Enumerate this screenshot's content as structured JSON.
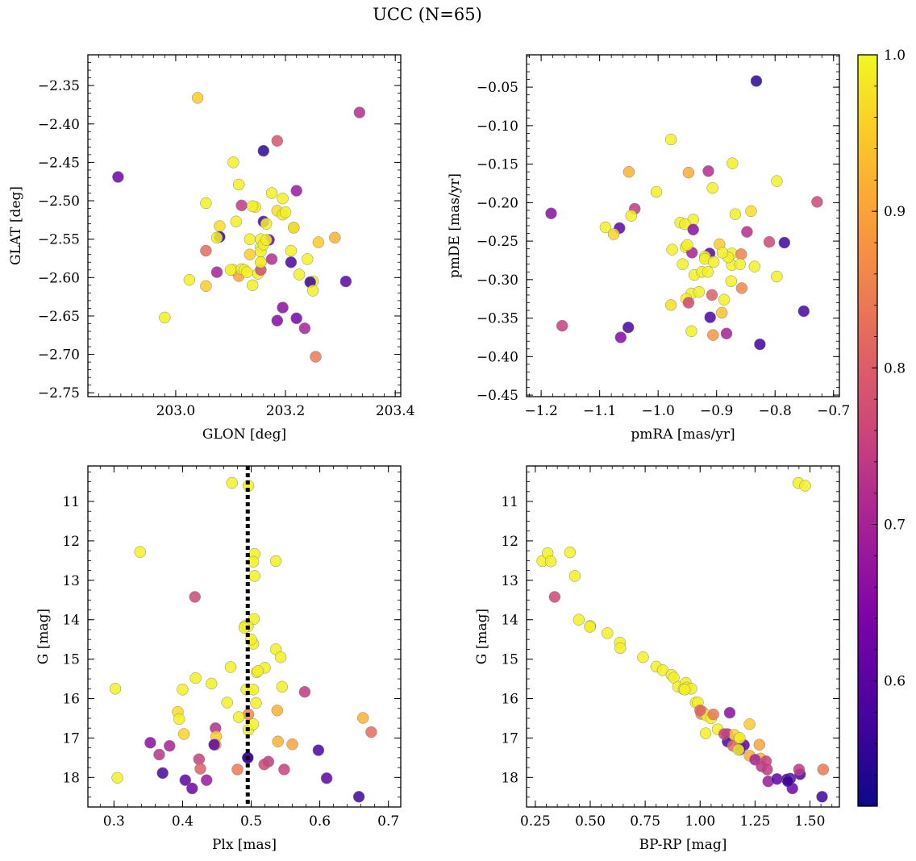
{
  "figure": {
    "title": "UCC (N=65)",
    "colorbar": {
      "colormap": "plasma",
      "range": [
        0.52,
        1.0
      ],
      "ticks": [
        "0.6",
        "0.7",
        "0.8",
        "0.9",
        "1.0"
      ],
      "tick_values": [
        0.6,
        0.7,
        0.8,
        0.9,
        1.0
      ]
    },
    "reference_line": {
      "panel": "plx_g",
      "x": 0.495,
      "style": "dotted",
      "color": "#000000"
    }
  },
  "chart_data": [
    {
      "id": "glon_glat",
      "type": "scatter",
      "title": "",
      "xlabel": "GLON [deg]",
      "ylabel": "GLAT [deg]",
      "xlim": [
        202.84,
        203.41
      ],
      "ylim": [
        -2.755,
        -2.31
      ],
      "xticks": [
        "203.0",
        "203.2",
        "203.4"
      ],
      "xtick_values": [
        203.0,
        203.2,
        203.4
      ],
      "yticks": [
        "−2.35",
        "−2.40",
        "−2.45",
        "−2.50",
        "−2.55",
        "−2.60",
        "−2.65",
        "−2.70",
        "−2.75"
      ],
      "ytick_values": [
        -2.35,
        -2.4,
        -2.45,
        -2.5,
        -2.55,
        -2.6,
        -2.65,
        -2.7,
        -2.75
      ],
      "x": [
        203.04,
        203.335,
        203.185,
        202.895,
        203.16,
        203.105,
        203.115,
        203.22,
        203.195,
        203.175,
        203.055,
        203.12,
        203.145,
        203.185,
        203.08,
        203.195,
        203.215,
        203.16,
        203.29,
        203.26,
        203.08,
        203.17,
        203.135,
        203.155,
        203.155,
        203.055,
        203.21,
        203.24,
        203.135,
        203.105,
        203.15,
        203.115,
        203.12,
        203.175,
        203.075,
        203.225,
        203.155,
        203.155,
        203.25,
        203.025,
        203.245,
        203.055,
        203.14,
        203.25,
        203.195,
        203.31,
        202.98,
        203.22,
        203.185,
        203.235,
        203.255,
        203.11,
        203.155,
        203.2,
        203.125,
        203.165,
        203.14,
        203.075,
        203.16,
        203.165,
        203.21,
        203.13,
        203.155,
        203.1,
        203.215
      ],
      "y": [
        -2.366,
        -2.385,
        -2.422,
        -2.469,
        -2.435,
        -2.45,
        -2.479,
        -2.487,
        -2.497,
        -2.49,
        -2.503,
        -2.506,
        -2.508,
        -2.513,
        -2.533,
        -2.518,
        -2.535,
        -2.527,
        -2.548,
        -2.554,
        -2.547,
        -2.551,
        -2.55,
        -2.56,
        -2.566,
        -2.565,
        -2.58,
        -2.576,
        -2.57,
        -2.59,
        -2.595,
        -2.598,
        -2.589,
        -2.576,
        -2.593,
        -2.596,
        -2.58,
        -2.59,
        -2.605,
        -2.603,
        -2.606,
        -2.611,
        -2.61,
        -2.617,
        -2.639,
        -2.605,
        -2.652,
        -2.653,
        -2.656,
        -2.666,
        -2.703,
        -2.527,
        -2.55,
        -2.515,
        -2.59,
        -2.53,
        -2.507,
        -2.548,
        -2.557,
        -2.551,
        -2.565,
        -2.593,
        -2.58,
        -2.59,
        -2.535
      ],
      "c": [
        0.95,
        0.72,
        0.78,
        0.62,
        0.55,
        0.99,
        0.99,
        0.68,
        0.99,
        0.99,
        0.99,
        0.74,
        0.99,
        0.97,
        0.97,
        0.98,
        0.8,
        0.58,
        0.92,
        0.95,
        0.56,
        0.62,
        0.99,
        0.99,
        0.99,
        0.82,
        0.58,
        0.99,
        0.95,
        0.99,
        0.99,
        0.9,
        0.99,
        0.72,
        0.7,
        0.99,
        0.99,
        0.77,
        0.99,
        0.99,
        0.56,
        0.95,
        0.99,
        0.99,
        0.66,
        0.6,
        0.99,
        0.63,
        0.65,
        0.7,
        0.84,
        0.99,
        0.99,
        0.99,
        0.99,
        0.99,
        0.99,
        0.99,
        0.99,
        0.99,
        0.99,
        0.99,
        0.99,
        0.99,
        0.99
      ]
    },
    {
      "id": "pm",
      "type": "scatter",
      "title": "",
      "xlabel": "pmRA [mas/yr]",
      "ylabel": "pmDE [mas/yr]",
      "xlim": [
        -1.225,
        -0.69
      ],
      "ylim": [
        -0.452,
        -0.008
      ],
      "xticks": [
        "−1.2",
        "−1.1",
        "−1.0",
        "−0.9",
        "−0.8",
        "−0.7"
      ],
      "xtick_values": [
        -1.2,
        -1.1,
        -1.0,
        -0.9,
        -0.8,
        -0.7
      ],
      "yticks": [
        "−0.05",
        "−0.10",
        "−0.15",
        "−0.20",
        "−0.25",
        "−0.30",
        "−0.35",
        "−0.40",
        "−0.45"
      ],
      "ytick_values": [
        -0.05,
        -0.1,
        -0.15,
        -0.2,
        -0.25,
        -0.3,
        -0.35,
        -0.4,
        -0.45
      ],
      "x": [
        -0.832,
        -0.978,
        -0.873,
        -1.05,
        -0.948,
        -0.914,
        -0.797,
        -0.907,
        -1.003,
        -0.728,
        -1.04,
        -1.183,
        -1.066,
        -1.046,
        -1.09,
        -1.076,
        -0.868,
        -0.94,
        -0.962,
        -0.954,
        -0.841,
        -0.81,
        -0.784,
        -0.895,
        -0.976,
        -0.953,
        -0.912,
        -0.92,
        -0.874,
        -0.848,
        -0.942,
        -0.92,
        -0.874,
        -0.858,
        -0.88,
        -0.797,
        -0.938,
        -0.958,
        -0.943,
        -0.925,
        -0.908,
        -0.857,
        -0.952,
        -0.948,
        -0.978,
        -0.887,
        -0.891,
        -0.911,
        -0.751,
        -0.943,
        -1.051,
        -1.064,
        -1.164,
        -0.883,
        -0.826,
        -0.906,
        -0.94,
        -0.835,
        -0.875,
        -0.93,
        -0.905,
        -0.86,
        -0.915,
        -0.95,
        -0.89
      ],
      "y": [
        -0.042,
        -0.118,
        -0.149,
        -0.16,
        -0.161,
        -0.159,
        -0.172,
        -0.181,
        -0.186,
        -0.199,
        -0.208,
        -0.214,
        -0.233,
        -0.217,
        -0.232,
        -0.241,
        -0.215,
        -0.222,
        -0.226,
        -0.228,
        -0.211,
        -0.251,
        -0.252,
        -0.254,
        -0.261,
        -0.258,
        -0.266,
        -0.27,
        -0.266,
        -0.238,
        -0.265,
        -0.273,
        -0.281,
        -0.267,
        -0.271,
        -0.296,
        -0.294,
        -0.28,
        -0.318,
        -0.29,
        -0.32,
        -0.311,
        -0.325,
        -0.33,
        -0.333,
        -0.326,
        -0.343,
        -0.349,
        -0.341,
        -0.367,
        -0.362,
        -0.375,
        -0.36,
        -0.37,
        -0.384,
        -0.372,
        -0.235,
        -0.283,
        -0.302,
        -0.316,
        -0.277,
        -0.28,
        -0.29,
        -0.255,
        -0.265
      ],
      "c": [
        0.55,
        0.99,
        0.99,
        0.92,
        0.91,
        0.72,
        0.99,
        0.99,
        0.99,
        0.76,
        0.74,
        0.66,
        0.6,
        0.99,
        0.99,
        0.96,
        0.99,
        0.99,
        0.99,
        0.99,
        0.97,
        0.76,
        0.57,
        0.95,
        0.99,
        0.99,
        0.6,
        0.99,
        0.99,
        0.72,
        0.7,
        0.99,
        0.99,
        0.85,
        0.99,
        0.99,
        0.99,
        0.99,
        0.99,
        0.99,
        0.8,
        0.86,
        0.99,
        0.76,
        0.97,
        0.99,
        0.94,
        0.58,
        0.58,
        0.99,
        0.58,
        0.65,
        0.75,
        0.7,
        0.57,
        0.88,
        0.66,
        0.99,
        0.99,
        0.99,
        0.99,
        0.99,
        0.99,
        0.99,
        0.99
      ]
    },
    {
      "id": "plx_g",
      "type": "scatter",
      "title": "",
      "xlabel": "Plx [mas]",
      "ylabel": "G [mag]",
      "xlim": [
        0.262,
        0.718
      ],
      "ylim": [
        18.75,
        10.1
      ],
      "invert_y": true,
      "xticks": [
        "0.3",
        "0.4",
        "0.5",
        "0.6",
        "0.7"
      ],
      "xtick_values": [
        0.3,
        0.4,
        0.5,
        0.6,
        0.7
      ],
      "yticks": [
        "11",
        "12",
        "13",
        "14",
        "15",
        "16",
        "17",
        "18"
      ],
      "ytick_values": [
        11,
        12,
        13,
        14,
        15,
        16,
        17,
        18
      ],
      "x": [
        0.472,
        0.496,
        0.338,
        0.505,
        0.503,
        0.536,
        0.505,
        0.418,
        0.491,
        0.504,
        0.495,
        0.503,
        0.536,
        0.543,
        0.52,
        0.508,
        0.47,
        0.302,
        0.419,
        0.545,
        0.442,
        0.493,
        0.503,
        0.578,
        0.465,
        0.507,
        0.393,
        0.395,
        0.496,
        0.538,
        0.482,
        0.448,
        0.496,
        0.503,
        0.402,
        0.449,
        0.663,
        0.675,
        0.448,
        0.495,
        0.353,
        0.381,
        0.446,
        0.539,
        0.56,
        0.598,
        0.366,
        0.495,
        0.424,
        0.525,
        0.519,
        0.426,
        0.548,
        0.48,
        0.371,
        0.305,
        0.404,
        0.435,
        0.61,
        0.414,
        0.657,
        0.4,
        0.5,
        0.51,
        0.49
      ],
      "y": [
        10.53,
        10.6,
        12.28,
        12.33,
        12.53,
        12.51,
        12.89,
        13.42,
        14.16,
        13.98,
        14.17,
        14.61,
        14.75,
        14.95,
        15.22,
        15.33,
        15.2,
        15.75,
        15.48,
        15.7,
        15.62,
        15.77,
        15.77,
        15.83,
        16.1,
        16.11,
        16.34,
        16.52,
        16.4,
        16.3,
        16.47,
        16.75,
        16.79,
        16.65,
        16.9,
        16.96,
        16.49,
        16.85,
        17.17,
        17.5,
        17.12,
        17.2,
        17.17,
        17.09,
        17.16,
        17.31,
        17.42,
        17.5,
        17.54,
        17.6,
        17.67,
        17.78,
        17.8,
        17.8,
        17.89,
        18.01,
        18.07,
        18.07,
        18.02,
        18.28,
        18.49,
        15.77,
        14.5,
        15.3,
        14.2
      ],
      "c": [
        0.99,
        0.99,
        0.99,
        0.99,
        0.99,
        0.99,
        0.99,
        0.76,
        0.99,
        0.99,
        0.99,
        0.99,
        0.99,
        0.99,
        0.99,
        0.99,
        0.99,
        0.99,
        0.99,
        0.99,
        0.99,
        0.99,
        0.99,
        0.74,
        0.99,
        0.99,
        0.97,
        0.99,
        0.86,
        0.92,
        0.99,
        0.72,
        0.99,
        0.99,
        0.96,
        0.95,
        0.92,
        0.82,
        0.91,
        0.64,
        0.66,
        0.7,
        0.6,
        0.92,
        0.9,
        0.58,
        0.73,
        0.57,
        0.75,
        0.74,
        0.76,
        0.8,
        0.75,
        0.84,
        0.58,
        0.99,
        0.6,
        0.68,
        0.6,
        0.62,
        0.57,
        0.99,
        0.99,
        0.99,
        0.99
      ]
    },
    {
      "id": "cmd",
      "type": "scatter",
      "title": "",
      "xlabel": "BP-RP [mag]",
      "ylabel": "G [mag]",
      "xlim": [
        0.21,
        1.634
      ],
      "ylim": [
        18.75,
        10.1
      ],
      "invert_y": true,
      "xticks": [
        "0.25",
        "0.50",
        "0.75",
        "1.00",
        "1.25",
        "1.50"
      ],
      "xtick_values": [
        0.25,
        0.5,
        0.75,
        1.0,
        1.25,
        1.5
      ],
      "yticks": [
        "11",
        "12",
        "13",
        "14",
        "15",
        "16",
        "17",
        "18"
      ],
      "ytick_values": [
        11,
        12,
        13,
        14,
        15,
        16,
        17,
        18
      ],
      "x": [
        1.447,
        1.478,
        0.282,
        0.306,
        0.32,
        0.408,
        0.43,
        0.338,
        0.448,
        0.5,
        0.498,
        0.578,
        0.635,
        0.637,
        0.74,
        0.8,
        0.83,
        0.87,
        0.88,
        0.9,
        0.925,
        0.935,
        0.94,
        0.96,
        0.98,
        0.99,
        1.005,
        1.01,
        1.025,
        1.03,
        1.05,
        1.08,
        1.125,
        1.125,
        1.155,
        1.175,
        1.18,
        1.15,
        1.18,
        1.225,
        1.275,
        1.225,
        1.25,
        1.28,
        1.305,
        1.3,
        1.27,
        1.2,
        1.135,
        1.175,
        1.31,
        1.35,
        1.41,
        1.42,
        1.455,
        1.45,
        1.56,
        1.555,
        1.395,
        1.4,
        0.93,
        1.06,
        1.0,
        1.11,
        1.18
      ],
      "y": [
        10.53,
        10.6,
        12.51,
        12.31,
        12.52,
        12.29,
        12.89,
        13.42,
        14.0,
        14.16,
        14.18,
        14.34,
        14.58,
        14.72,
        14.95,
        15.19,
        15.28,
        15.4,
        15.47,
        15.7,
        15.76,
        15.6,
        15.72,
        15.75,
        16.1,
        16.1,
        16.39,
        16.33,
        16.88,
        16.43,
        16.5,
        16.78,
        16.9,
        17.09,
        16.92,
        17.02,
        17.2,
        17.2,
        17.3,
        17.45,
        17.52,
        16.65,
        17.55,
        17.72,
        17.8,
        17.59,
        17.17,
        17.18,
        16.36,
        17.3,
        18.1,
        18.04,
        18.03,
        18.28,
        17.92,
        17.8,
        17.8,
        18.49,
        18.05,
        18.1,
        15.77,
        16.4,
        16.3,
        16.9,
        17.0
      ],
      "c": [
        0.99,
        0.99,
        0.99,
        0.99,
        0.99,
        0.99,
        0.99,
        0.76,
        0.99,
        0.99,
        0.99,
        0.99,
        0.99,
        0.99,
        0.99,
        0.99,
        0.99,
        0.99,
        0.99,
        0.99,
        0.99,
        0.99,
        0.99,
        0.99,
        0.99,
        0.99,
        0.86,
        0.92,
        0.99,
        0.99,
        0.99,
        0.99,
        0.72,
        0.58,
        0.96,
        0.95,
        0.92,
        0.82,
        0.57,
        0.91,
        0.92,
        0.95,
        0.7,
        0.73,
        0.74,
        0.75,
        0.9,
        0.6,
        0.66,
        0.99,
        0.68,
        0.6,
        0.6,
        0.62,
        0.58,
        0.74,
        0.84,
        0.57,
        0.58,
        0.57,
        0.99,
        0.84,
        0.8,
        0.75,
        0.99
      ]
    }
  ]
}
